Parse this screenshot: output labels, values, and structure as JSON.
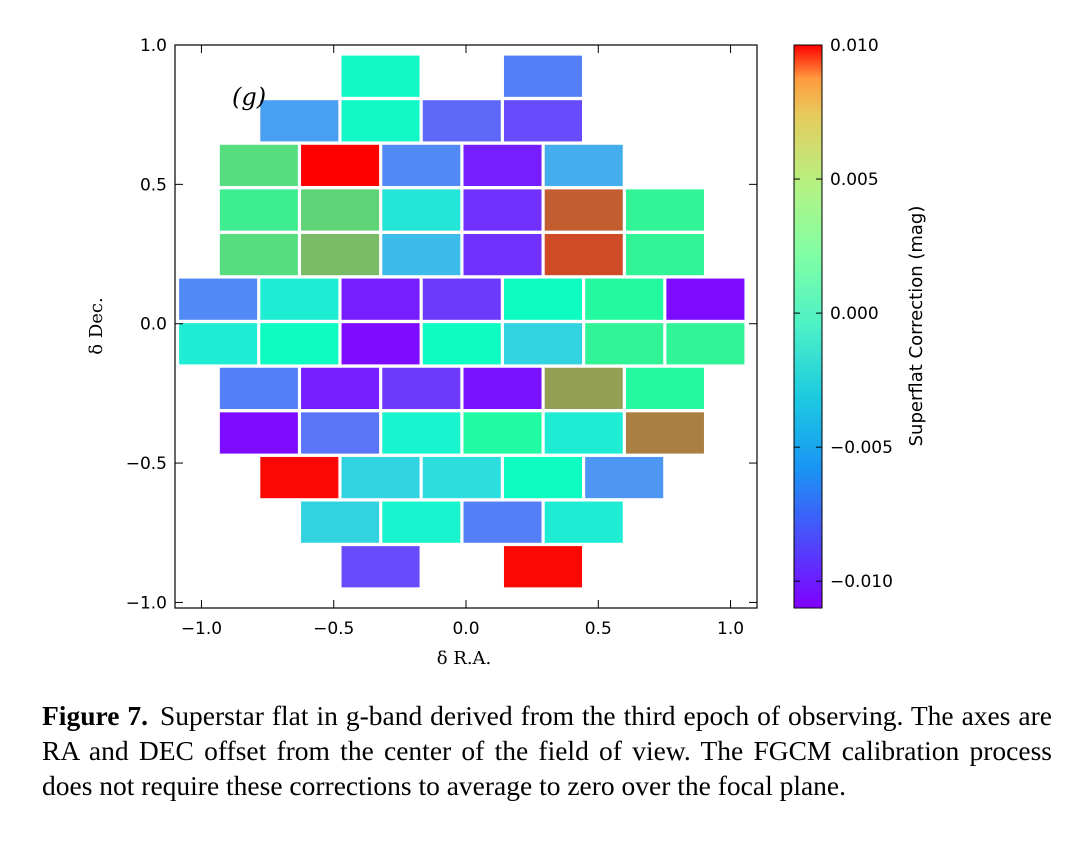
{
  "chart_data": {
    "type": "heatmap",
    "panel_label": "(g)",
    "xlabel": "δ R.A.",
    "ylabel": "δ Dec.",
    "xlim": [
      -1.1,
      1.1
    ],
    "ylim": [
      -1.02,
      1.0
    ],
    "xticks": [
      {
        "value": -1.0,
        "label": "−1.0"
      },
      {
        "value": -0.5,
        "label": "−0.5"
      },
      {
        "value": 0.0,
        "label": "0.0"
      },
      {
        "value": 0.5,
        "label": "0.5"
      },
      {
        "value": 1.0,
        "label": "1.0"
      }
    ],
    "yticks": [
      {
        "value": -1.0,
        "label": "−1.0"
      },
      {
        "value": -0.5,
        "label": "−0.5"
      },
      {
        "value": 0.0,
        "label": "0.0"
      },
      {
        "value": 0.5,
        "label": "0.5"
      },
      {
        "value": 1.0,
        "label": "1.0"
      }
    ],
    "colorbar": {
      "label": "Superflat Correction (mag)",
      "colormap": "rainbow",
      "range": [
        -0.011,
        0.01
      ],
      "ticks": [
        {
          "value": 0.01,
          "label": "0.010"
        },
        {
          "value": 0.005,
          "label": "0.005"
        },
        {
          "value": 0.0,
          "label": "0.000"
        },
        {
          "value": -0.005,
          "label": "−0.005"
        },
        {
          "value": -0.01,
          "label": "−0.010"
        }
      ]
    },
    "ccd_size": {
      "width": 0.295,
      "height": 0.148
    },
    "ccds": [
      {
        "x": -0.323,
        "y": 0.888,
        "value": -0.002
      },
      {
        "x": 0.291,
        "y": 0.888,
        "value": -0.0075
      },
      {
        "x": -0.63,
        "y": 0.728,
        "value": -0.0065
      },
      {
        "x": -0.323,
        "y": 0.728,
        "value": -0.002
      },
      {
        "x": -0.016,
        "y": 0.728,
        "value": -0.0082
      },
      {
        "x": 0.291,
        "y": 0.728,
        "value": -0.009
      },
      {
        "x": -0.783,
        "y": 0.568,
        "value": 0.003
      },
      {
        "x": -0.476,
        "y": 0.568,
        "value": 0.01
      },
      {
        "x": -0.169,
        "y": 0.568,
        "value": -0.0072
      },
      {
        "x": 0.138,
        "y": 0.568,
        "value": -0.0102
      },
      {
        "x": 0.445,
        "y": 0.568,
        "value": -0.006
      },
      {
        "x": -0.783,
        "y": 0.408,
        "value": 0.002
      },
      {
        "x": -0.476,
        "y": 0.408,
        "value": 0.0035
      },
      {
        "x": -0.169,
        "y": 0.408,
        "value": -0.0035
      },
      {
        "x": 0.138,
        "y": 0.408,
        "value": -0.0097
      },
      {
        "x": 0.445,
        "y": 0.408,
        "value": 0.0075
      },
      {
        "x": 0.752,
        "y": 0.408,
        "value": 0.0015
      },
      {
        "x": -0.783,
        "y": 0.248,
        "value": 0.003
      },
      {
        "x": -0.476,
        "y": 0.248,
        "value": 0.0045
      },
      {
        "x": -0.169,
        "y": 0.248,
        "value": -0.0055
      },
      {
        "x": 0.138,
        "y": 0.248,
        "value": -0.0097
      },
      {
        "x": 0.445,
        "y": 0.248,
        "value": 0.008
      },
      {
        "x": 0.752,
        "y": 0.248,
        "value": 0.0015
      },
      {
        "x": -0.937,
        "y": 0.088,
        "value": -0.0072
      },
      {
        "x": -0.63,
        "y": 0.088,
        "value": -0.003
      },
      {
        "x": -0.323,
        "y": 0.088,
        "value": -0.0102
      },
      {
        "x": -0.016,
        "y": 0.088,
        "value": -0.0095
      },
      {
        "x": 0.291,
        "y": 0.088,
        "value": -0.0015
      },
      {
        "x": 0.598,
        "y": 0.088,
        "value": 0.001
      },
      {
        "x": 0.905,
        "y": 0.088,
        "value": -0.0107
      },
      {
        "x": -0.937,
        "y": -0.072,
        "value": -0.003
      },
      {
        "x": -0.63,
        "y": -0.072,
        "value": -0.0015
      },
      {
        "x": -0.323,
        "y": -0.072,
        "value": -0.0107
      },
      {
        "x": -0.016,
        "y": -0.072,
        "value": -0.0015
      },
      {
        "x": 0.291,
        "y": -0.072,
        "value": -0.0045
      },
      {
        "x": 0.598,
        "y": -0.072,
        "value": 0.0015
      },
      {
        "x": 0.905,
        "y": -0.072,
        "value": 0.0015
      },
      {
        "x": -0.783,
        "y": -0.232,
        "value": -0.0075
      },
      {
        "x": -0.476,
        "y": -0.232,
        "value": -0.0102
      },
      {
        "x": -0.169,
        "y": -0.232,
        "value": -0.0095
      },
      {
        "x": 0.138,
        "y": -0.232,
        "value": -0.0105
      },
      {
        "x": 0.445,
        "y": -0.232,
        "value": 0.0055
      },
      {
        "x": 0.752,
        "y": -0.232,
        "value": 0.001
      },
      {
        "x": -0.783,
        "y": -0.392,
        "value": -0.0107
      },
      {
        "x": -0.476,
        "y": -0.392,
        "value": -0.0078
      },
      {
        "x": -0.169,
        "y": -0.392,
        "value": -0.0025
      },
      {
        "x": 0.138,
        "y": -0.392,
        "value": 0.0008
      },
      {
        "x": 0.445,
        "y": -0.392,
        "value": -0.003
      },
      {
        "x": 0.752,
        "y": -0.392,
        "value": 0.0065
      },
      {
        "x": -0.63,
        "y": -0.552,
        "value": 0.0098
      },
      {
        "x": -0.323,
        "y": -0.552,
        "value": -0.0045
      },
      {
        "x": -0.016,
        "y": -0.552,
        "value": -0.004
      },
      {
        "x": 0.291,
        "y": -0.552,
        "value": -0.0015
      },
      {
        "x": 0.598,
        "y": -0.552,
        "value": -0.0068
      },
      {
        "x": -0.476,
        "y": -0.712,
        "value": -0.0045
      },
      {
        "x": -0.169,
        "y": -0.712,
        "value": -0.0025
      },
      {
        "x": 0.138,
        "y": -0.712,
        "value": -0.0075
      },
      {
        "x": 0.445,
        "y": -0.712,
        "value": -0.003
      },
      {
        "x": -0.323,
        "y": -0.872,
        "value": -0.009
      },
      {
        "x": 0.291,
        "y": -0.872,
        "value": 0.0098
      }
    ]
  },
  "caption": {
    "label": "Figure 7.",
    "text": "Superstar flat in g-band derived from the third epoch of observing. The axes are RA and DEC offset from the center of the field of view. The FGCM calibration process does not require these corrections to average to zero over the focal plane."
  }
}
